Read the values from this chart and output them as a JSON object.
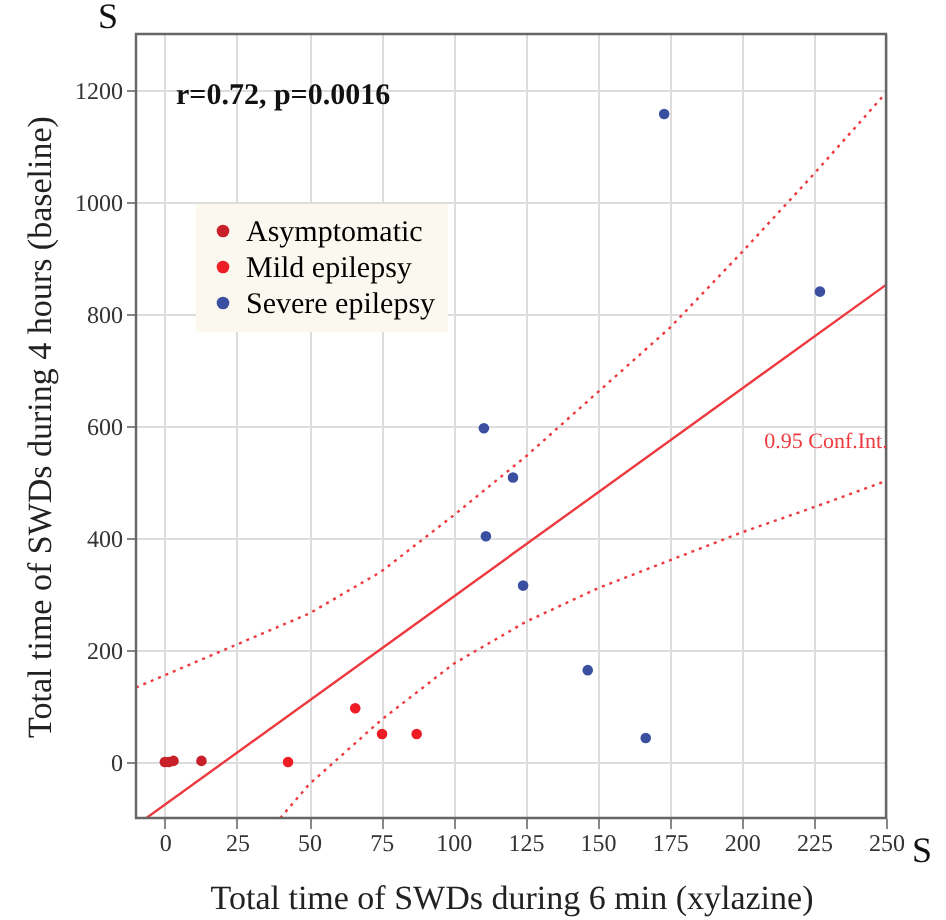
{
  "chart_data": {
    "type": "scatter",
    "xlabel": "Total time of SWDs during 6 min (xylazine)",
    "ylabel": "Total time of SWDs during 4 hours (baseline)",
    "xlim": [
      -10,
      250
    ],
    "ylim": [
      -100,
      1300
    ],
    "xticks": [
      0,
      25,
      50,
      75,
      100,
      125,
      150,
      175,
      200,
      225,
      250
    ],
    "yticks": [
      0,
      200,
      400,
      600,
      800,
      {
        "value": 1000,
        "label": "1000"
      },
      {
        "value": 1200,
        "label": "1200"
      }
    ],
    "grid": true,
    "legend": "top left",
    "marker": "circle",
    "annotations": [
      "r=0.72, p=0.0016",
      "S",
      "S",
      "0.95 Conf.Int."
    ],
    "series": [
      {
        "name": "Asymptomatic",
        "color": "#c8202a",
        "x": [
          0,
          1.4,
          3,
          12.7
        ],
        "values": [
          0,
          0,
          2,
          2
        ]
      },
      {
        "name": "Mild epilepsy",
        "color": "#ee1c25",
        "x": [
          42.7,
          66,
          75.3,
          87.3
        ],
        "values": [
          0,
          96,
          50,
          50
        ]
      },
      {
        "name": "Severe epilepsy",
        "color": "#3a4fa0",
        "x": [
          110.6,
          111.3,
          120.7,
          124.2,
          146.6,
          166.7,
          173.1,
          227.1
        ],
        "values": [
          596,
          403,
          508,
          315,
          164,
          43,
          1157,
          840
        ]
      },
      {
        "type": "line",
        "marker": "none",
        "color": "#ee3a3f",
        "line_style": "solid",
        "x": [
          -6.4,
          250
        ],
        "values": [
          -100,
          852
        ]
      },
      {
        "type": "line",
        "marker": "none",
        "color": "#ee3a3f",
        "line_style": "dotted",
        "x": [
          -10,
          25,
          50,
          75,
          100,
          125,
          150,
          175,
          200,
          225,
          250
        ],
        "values": [
          133,
          210,
          265,
          340,
          440,
          545,
          660,
          775,
          910,
          1050,
          1195
        ]
      },
      {
        "type": "line",
        "marker": "none",
        "color": "#ee3a3f",
        "line_style": "dotted",
        "x": [
          40,
          50,
          75,
          100,
          125,
          150,
          175,
          200,
          225,
          250
        ],
        "values": [
          -100,
          -40,
          75,
          175,
          250,
          310,
          360,
          410,
          455,
          502
        ]
      }
    ]
  }
}
